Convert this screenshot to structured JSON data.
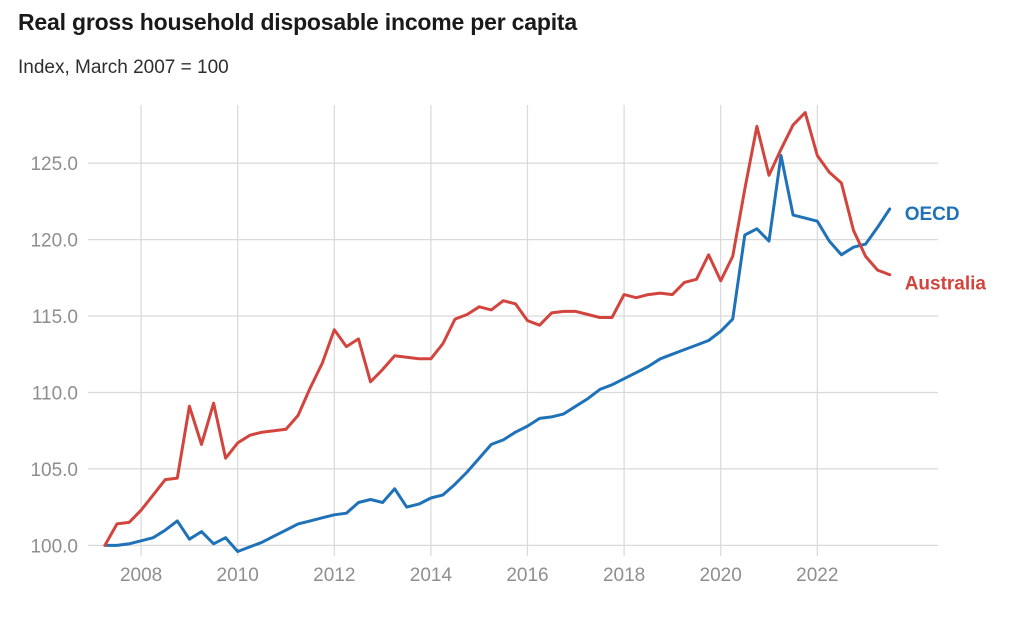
{
  "header": {
    "title": "Real gross household disposable income per capita",
    "subtitle": "Index, March 2007 = 100"
  },
  "chart_data": {
    "type": "line",
    "title": "Real gross household disposable income per capita",
    "subtitle": "Index, March 2007 = 100",
    "frequency": "quarterly",
    "x_start": 2007.25,
    "x_step": 0.25,
    "xlim": [
      2006.9,
      2024.5
    ],
    "ylim": [
      99.5,
      128.8
    ],
    "x_ticks": [
      2008,
      2010,
      2012,
      2014,
      2016,
      2018,
      2020,
      2022
    ],
    "x_tick_labels": [
      "2008",
      "2010",
      "2012",
      "2014",
      "2016",
      "2018",
      "2020",
      "2022"
    ],
    "y_ticks": [
      100.0,
      105.0,
      110.0,
      115.0,
      120.0,
      125.0
    ],
    "y_tick_labels": [
      "100.0",
      "105.0",
      "110.0",
      "115.0",
      "120.0",
      "125.0"
    ],
    "grid": true,
    "legend_position": "line-end-right",
    "series": [
      {
        "name": "OECD",
        "color": "#1f72b8",
        "values": [
          100.0,
          100.0,
          100.1,
          100.3,
          100.5,
          101.0,
          101.6,
          100.4,
          100.9,
          100.1,
          100.5,
          99.6,
          99.9,
          100.2,
          100.6,
          101.0,
          101.4,
          101.6,
          101.8,
          102.0,
          102.1,
          102.8,
          103.0,
          102.8,
          103.7,
          102.5,
          102.7,
          103.1,
          103.3,
          104.0,
          104.8,
          105.7,
          106.6,
          106.9,
          107.4,
          107.8,
          108.3,
          108.4,
          108.6,
          109.1,
          109.6,
          110.2,
          110.5,
          110.9,
          111.3,
          111.7,
          112.2,
          112.5,
          112.8,
          113.1,
          113.4,
          114.0,
          114.8,
          120.3,
          120.7,
          119.9,
          125.5,
          121.6,
          121.4,
          121.2,
          119.9,
          119.0,
          119.5,
          119.7,
          120.8,
          122.0
        ]
      },
      {
        "name": "Australia",
        "color": "#d2453e",
        "values": [
          100.0,
          101.4,
          101.5,
          102.3,
          103.3,
          104.3,
          104.4,
          109.1,
          106.6,
          109.3,
          105.7,
          106.7,
          107.2,
          107.4,
          107.5,
          107.6,
          108.5,
          110.3,
          111.9,
          114.1,
          113.0,
          113.5,
          110.7,
          111.5,
          112.4,
          112.3,
          112.2,
          112.2,
          113.2,
          114.8,
          115.1,
          115.6,
          115.4,
          116.0,
          115.8,
          114.7,
          114.4,
          115.2,
          115.3,
          115.3,
          115.1,
          114.9,
          114.9,
          116.4,
          116.2,
          116.4,
          116.5,
          116.4,
          117.2,
          117.4,
          119.0,
          117.3,
          118.9,
          123.3,
          127.4,
          124.2,
          125.9,
          127.5,
          128.3,
          125.5,
          124.4,
          123.7,
          120.6,
          118.9,
          118.0,
          117.7
        ]
      }
    ]
  },
  "colors": {
    "background": "#ffffff",
    "grid": "#d9d9d9",
    "tick_label": "#8e8e8e",
    "title": "#1a1a1a",
    "subtitle": "#2e2e2e",
    "oecd_blue": "#1f72b8",
    "australia_red": "#d2453e"
  }
}
